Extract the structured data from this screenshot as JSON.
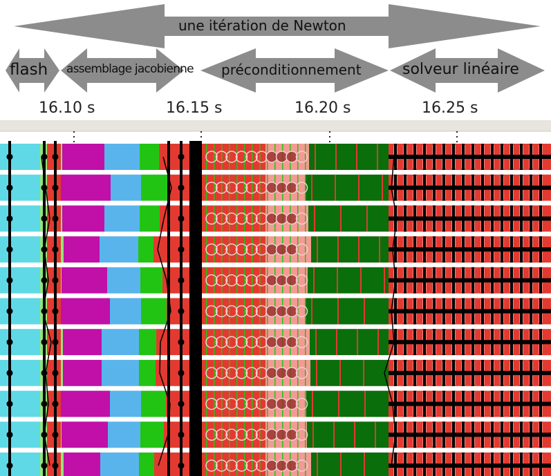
{
  "top_arrow": {
    "label": "une itération de Newton"
  },
  "phases": [
    {
      "label": "flash"
    },
    {
      "label": "assemblage jacobienne"
    },
    {
      "label": "préconditionnement"
    },
    {
      "label": "solveur linéaire"
    }
  ],
  "time_axis": {
    "ticks": [
      "16.10 s",
      "16.15 s",
      "16.20 s",
      "16.25 s"
    ]
  },
  "trace": {
    "rows": 11,
    "colors": {
      "cyan": "#5fd9e6",
      "light_green": "#8fe67a",
      "magenta": "#c010a8",
      "light_blue": "#5ab4ec",
      "green": "#22c414",
      "red": "#e23a30",
      "pink": "#f49a94",
      "dark_green": "#0a6e0a",
      "black": "#000000",
      "arrow_gray": "#8c8c8c",
      "ruler_bg": "#e8e4de"
    }
  }
}
